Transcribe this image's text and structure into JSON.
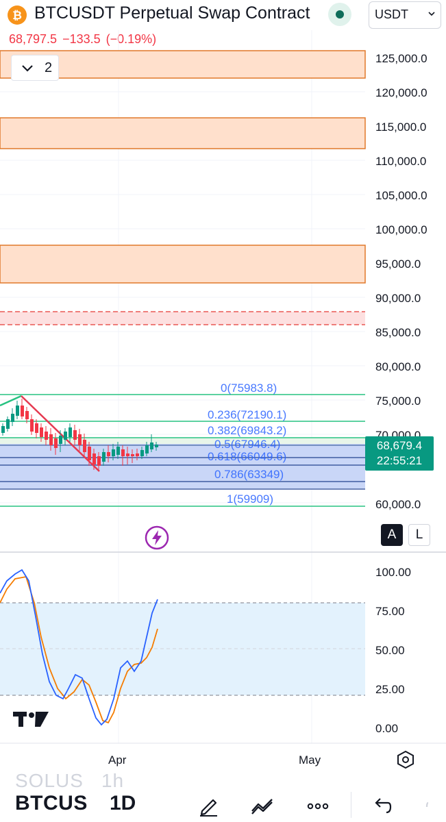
{
  "header": {
    "title": "BTCUSDT Perpetual Swap Contract",
    "currency": "USDT",
    "coin_icon": "bitcoin-icon",
    "status_icon": "market-status-dot-icon"
  },
  "quote": {
    "last": "68,797.5",
    "change": "−133.5",
    "change_pct": "(−0.19%)",
    "color": "#f23645"
  },
  "collapse": {
    "count": "2",
    "icon": "chevron-down-icon"
  },
  "price_axis": {
    "labels": [
      "125,000.0",
      "120,000.0",
      "115,000.0",
      "110,000.0",
      "105,000.0",
      "100,000.0",
      "95,000.0",
      "90,000.0",
      "85,000.0",
      "80,000.0",
      "75,000.0",
      "70,000.0",
      "60,000.0"
    ],
    "current_price": "68,679.4",
    "countdown": "22:55:21"
  },
  "fib": {
    "levels": [
      "0(75983.8)",
      "0.236(72190.1)",
      "0.382(69843.2)",
      "0.5(67946.4)",
      "0.618(66049.6)",
      "0.786(63349)",
      "1(59909)"
    ]
  },
  "scale_buttons": {
    "auto": "A",
    "log": "L"
  },
  "oscillator": {
    "labels": [
      "100.00",
      "75.00",
      "50.00",
      "25.00",
      "0.00"
    ]
  },
  "time_axis": {
    "labels": [
      "Apr",
      "May"
    ]
  },
  "bottom": {
    "ghost_symbol": "SOLUS",
    "ghost_interval": "1h",
    "symbol": "BTCUS",
    "interval": "1D"
  },
  "icons": {
    "lightning": "lightning-icon",
    "settings": "settings-hexagon-icon",
    "draw": "pencil-icon",
    "indicators": "indicators-icon",
    "more": "more-icon",
    "undo": "undo-icon",
    "redo": "redo-icon"
  },
  "colors": {
    "accent_green": "#089981",
    "bear_red": "#f23645",
    "zone_orange": "#ff9800",
    "fib_blue": "#2962ff",
    "k_line": "#2962ff",
    "d_line": "#f57c00"
  }
}
